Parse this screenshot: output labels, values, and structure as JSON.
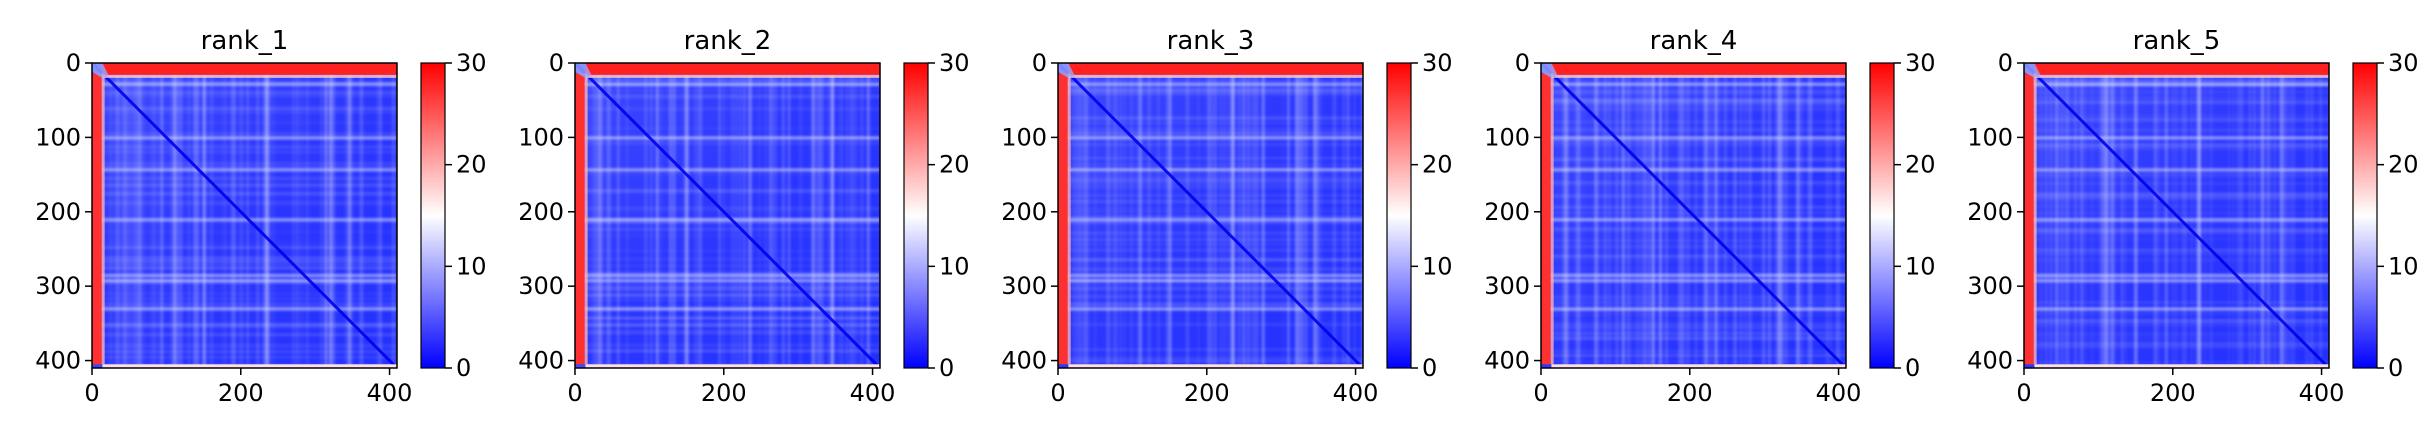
{
  "chart_data": [
    {
      "type": "heatmap",
      "title": "rank_1",
      "xlim": [
        0,
        410
      ],
      "ylim": [
        410,
        0
      ],
      "xticks": [
        0,
        200,
        400
      ],
      "yticks": [
        0,
        100,
        200,
        300,
        400
      ],
      "colorbar": {
        "range": [
          0,
          30
        ],
        "ticks": [
          0,
          10,
          20,
          30
        ],
        "colors": [
          "#0000ff",
          "#ffffff",
          "#ff0000"
        ]
      }
    },
    {
      "type": "heatmap",
      "title": "rank_2",
      "xlim": [
        0,
        410
      ],
      "ylim": [
        410,
        0
      ],
      "xticks": [
        0,
        200,
        400
      ],
      "yticks": [
        0,
        100,
        200,
        300,
        400
      ],
      "colorbar": {
        "range": [
          0,
          30
        ],
        "ticks": [
          0,
          10,
          20,
          30
        ],
        "colors": [
          "#0000ff",
          "#ffffff",
          "#ff0000"
        ]
      }
    },
    {
      "type": "heatmap",
      "title": "rank_3",
      "xlim": [
        0,
        410
      ],
      "ylim": [
        410,
        0
      ],
      "xticks": [
        0,
        200,
        400
      ],
      "yticks": [
        0,
        100,
        200,
        300,
        400
      ],
      "colorbar": {
        "range": [
          0,
          30
        ],
        "ticks": [
          0,
          10,
          20,
          30
        ],
        "colors": [
          "#0000ff",
          "#ffffff",
          "#ff0000"
        ]
      }
    },
    {
      "type": "heatmap",
      "title": "rank_4",
      "xlim": [
        0,
        410
      ],
      "ylim": [
        410,
        0
      ],
      "xticks": [
        0,
        200,
        400
      ],
      "yticks": [
        0,
        100,
        200,
        300,
        400
      ],
      "colorbar": {
        "range": [
          0,
          30
        ],
        "ticks": [
          0,
          10,
          20,
          30
        ],
        "colors": [
          "#0000ff",
          "#ffffff",
          "#ff0000"
        ]
      }
    },
    {
      "type": "heatmap",
      "title": "rank_5",
      "xlim": [
        0,
        410
      ],
      "ylim": [
        410,
        0
      ],
      "xticks": [
        0,
        200,
        400
      ],
      "yticks": [
        0,
        100,
        200,
        300,
        400
      ],
      "colorbar": {
        "range": [
          0,
          30
        ],
        "ticks": [
          0,
          10,
          20,
          30
        ],
        "colors": [
          "#0000ff",
          "#ffffff",
          "#ff0000"
        ]
      }
    }
  ]
}
